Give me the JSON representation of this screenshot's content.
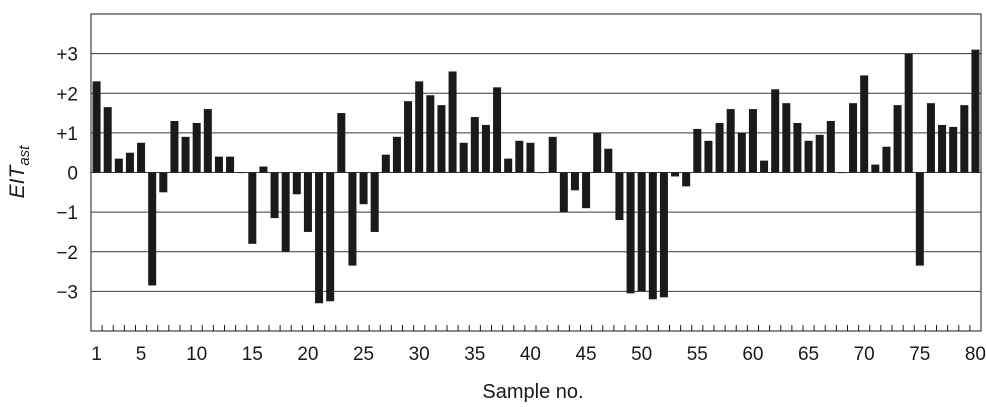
{
  "chart_data": {
    "type": "bar",
    "title": "",
    "xlabel": "Sample no.",
    "ylabel_main": "EIT",
    "ylabel_sub": "ast",
    "ylim": [
      -4,
      4
    ],
    "xlim": [
      1,
      80
    ],
    "grid": true,
    "bar_color": "#1a1a1a",
    "grid_color": "#3a3a3a",
    "y_ticks": [
      {
        "value": 3,
        "label": "+3"
      },
      {
        "value": 2,
        "label": "+2"
      },
      {
        "value": 1,
        "label": "+1"
      },
      {
        "value": 0,
        "label": "0"
      },
      {
        "value": -1,
        "label": "−1"
      },
      {
        "value": -2,
        "label": "−2"
      },
      {
        "value": -3,
        "label": "−3"
      }
    ],
    "x_ticks": [
      {
        "value": 1,
        "label": "1"
      },
      {
        "value": 5,
        "label": "5"
      },
      {
        "value": 10,
        "label": "10"
      },
      {
        "value": 15,
        "label": "15"
      },
      {
        "value": 20,
        "label": "20"
      },
      {
        "value": 25,
        "label": "25"
      },
      {
        "value": 30,
        "label": "30"
      },
      {
        "value": 35,
        "label": "35"
      },
      {
        "value": 40,
        "label": "40"
      },
      {
        "value": 45,
        "label": "45"
      },
      {
        "value": 50,
        "label": "50"
      },
      {
        "value": 55,
        "label": "55"
      },
      {
        "value": 60,
        "label": "60"
      },
      {
        "value": 65,
        "label": "65"
      },
      {
        "value": 70,
        "label": "70"
      },
      {
        "value": 75,
        "label": "75"
      },
      {
        "value": 80,
        "label": "80"
      }
    ],
    "categories": [
      1,
      2,
      3,
      4,
      5,
      6,
      7,
      8,
      9,
      10,
      11,
      12,
      13,
      14,
      15,
      16,
      17,
      18,
      19,
      20,
      21,
      22,
      23,
      24,
      25,
      26,
      27,
      28,
      29,
      30,
      31,
      32,
      33,
      34,
      35,
      36,
      37,
      38,
      39,
      40,
      41,
      42,
      43,
      44,
      45,
      46,
      47,
      48,
      49,
      50,
      51,
      52,
      53,
      54,
      55,
      56,
      57,
      58,
      59,
      60,
      61,
      62,
      63,
      64,
      65,
      66,
      67,
      68,
      69,
      70,
      71,
      72,
      73,
      74,
      75,
      76,
      77,
      78,
      79,
      80
    ],
    "values": [
      2.3,
      1.65,
      0.35,
      0.5,
      0.75,
      -2.85,
      -0.5,
      1.3,
      0.9,
      1.25,
      1.6,
      0.4,
      0.4,
      0,
      -1.8,
      0.15,
      -1.15,
      -2.0,
      -0.55,
      -1.5,
      -3.3,
      -3.25,
      1.5,
      -2.35,
      -0.8,
      -1.5,
      0.45,
      0.9,
      1.8,
      2.3,
      1.95,
      1.7,
      2.55,
      0.75,
      1.4,
      1.2,
      2.15,
      0.35,
      0.8,
      0.75,
      0,
      0.9,
      -1.0,
      -0.45,
      -0.9,
      1.0,
      0.6,
      -1.2,
      -3.05,
      -3.0,
      -3.2,
      -3.15,
      -0.1,
      -0.35,
      1.1,
      0.8,
      1.25,
      1.6,
      1.0,
      1.6,
      0.3,
      2.1,
      1.75,
      1.25,
      0.8,
      0.95,
      1.3,
      0,
      1.75,
      2.45,
      0.2,
      0.65,
      1.7,
      3.0,
      -2.35,
      1.75,
      1.2,
      1.15,
      1.7,
      3.1
    ]
  }
}
